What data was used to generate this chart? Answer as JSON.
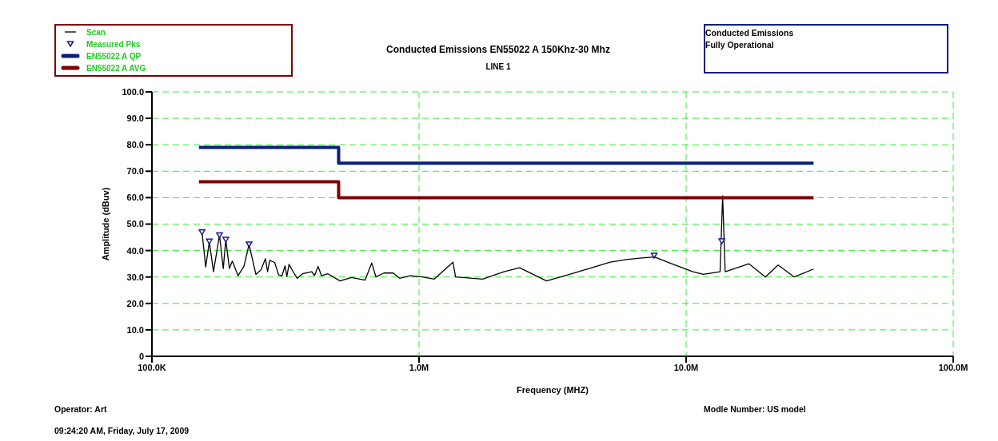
{
  "chart_data": {
    "type": "line",
    "title": "Conducted Emissions EN55022 A 150Khz-30 Mhz",
    "subtitle": "LINE 1",
    "xlabel": "Frequency (MHZ)",
    "ylabel": "Amplitude (dBuv)",
    "annotations": [
      "Conducted Emissions\nFully Operational",
      "Operator: Art",
      "Modle Number: US model",
      "09:24:20 AM, Friday, July 17, 2009"
    ],
    "log": "x",
    "grid": true,
    "legend": "top left",
    "xlim": [
      100000,
      100000000
    ],
    "xticks": [
      {
        "value": 100000,
        "label": "100.0K"
      },
      {
        "value": 1000000,
        "label": "1.0M"
      },
      {
        "value": 10000000,
        "label": "10.0M"
      },
      {
        "value": 100000000,
        "label": "100.0M"
      }
    ],
    "ylim": [
      0,
      100
    ],
    "yticks": [
      0,
      {
        "value": 10,
        "label": "10.0"
      },
      {
        "value": 20,
        "label": "20.0"
      },
      {
        "value": 30,
        "label": "30.0"
      },
      {
        "value": 40,
        "label": "40.0"
      },
      {
        "value": 50,
        "label": "50.0"
      },
      {
        "value": 60,
        "label": "60.0"
      },
      {
        "value": 70,
        "label": "70.0"
      },
      {
        "value": 80,
        "label": "80.0"
      },
      {
        "value": 90,
        "label": "90.0"
      },
      {
        "value": 100,
        "label": "100.0"
      }
    ],
    "series": [
      {
        "name": "Scan",
        "color": "#000000",
        "x": [
          154000,
          159000,
          164000,
          170000,
          179000,
          185000,
          189000,
          195000,
          200000,
          210000,
          221000,
          231000,
          245000,
          256000,
          266000,
          271000,
          276000,
          288000,
          298000,
          307000,
          315000,
          320000,
          326000,
          340000,
          350000,
          366000,
          397000,
          406000,
          419000,
          431000,
          456000,
          506000,
          559000,
          628000,
          665000,
          690000,
          739000,
          800000,
          846000,
          928000,
          1030000,
          1140000,
          1340000,
          1370000,
          1730000,
          2080000,
          2380000,
          3000000,
          3520000,
          4430000,
          5200000,
          5970000,
          6700000,
          7610000,
          8830000,
          10600000,
          11600000,
          13400000,
          13700000,
          14000000,
          17200000,
          19800000,
          22100000,
          25400000,
          30000000
        ],
        "values": [
          46.9,
          33.8,
          43.4,
          32.0,
          45.8,
          33.2,
          44.1,
          33.2,
          36.0,
          30.5,
          34.0,
          42.3,
          31.0,
          32.7,
          36.9,
          32.0,
          36.3,
          35.5,
          30.8,
          30.5,
          34.2,
          30.2,
          34.8,
          31.5,
          29.5,
          31.2,
          32.0,
          30.5,
          34.0,
          30.5,
          31.2,
          28.5,
          29.8,
          28.8,
          35.3,
          30.0,
          31.5,
          31.5,
          29.5,
          30.5,
          30.0,
          29.2,
          35.6,
          30.0,
          29.2,
          32.0,
          33.5,
          28.5,
          30.5,
          33.5,
          35.6,
          36.6,
          37.1,
          37.6,
          35.0,
          32.0,
          31.0,
          32.0,
          60.7,
          32.0,
          35.0,
          30.0,
          34.5,
          30.0,
          33.0
        ]
      },
      {
        "name": "Measured Pks",
        "type": "scatter",
        "marker": "triangle",
        "color": "#1a1a8c",
        "x": [
          154000,
          164000,
          179000,
          189000,
          231000,
          7590000,
          13600000
        ],
        "values": [
          46.9,
          43.4,
          45.8,
          44.1,
          42.3,
          38.1,
          43.5
        ]
      },
      {
        "name": "EN55022 A QP",
        "type": "step",
        "color": "#0a1f7a",
        "x": [
          150000,
          500000,
          30000000
        ],
        "values": [
          79,
          73,
          73
        ]
      },
      {
        "name": "EN55022 A AVG",
        "type": "step",
        "color": "#800000",
        "x": [
          150000,
          500000,
          30000000
        ],
        "values": [
          66,
          60,
          60
        ]
      }
    ]
  }
}
